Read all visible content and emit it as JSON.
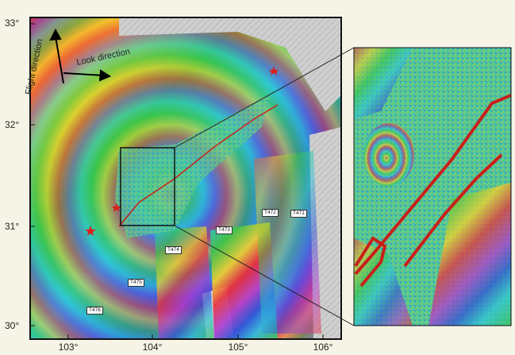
{
  "map": {
    "lat_ticks": [
      "33°",
      "32°",
      "31°",
      "30°"
    ],
    "lon_ticks": [
      "103°",
      "104°",
      "105°",
      "106°"
    ],
    "flight_direction_label": "Flight direction",
    "look_direction_label": "Look direction",
    "track_labels": [
      "T472",
      "T471",
      "T473",
      "T474",
      "T475",
      "T476"
    ]
  },
  "colors": {
    "fault_trace": "#c8201a",
    "frame": "#111111",
    "background": "#f6f4e6"
  },
  "icons": [
    "epicenter-star-icon",
    "flight-direction-arrow-icon",
    "look-direction-arrow-icon"
  ]
}
